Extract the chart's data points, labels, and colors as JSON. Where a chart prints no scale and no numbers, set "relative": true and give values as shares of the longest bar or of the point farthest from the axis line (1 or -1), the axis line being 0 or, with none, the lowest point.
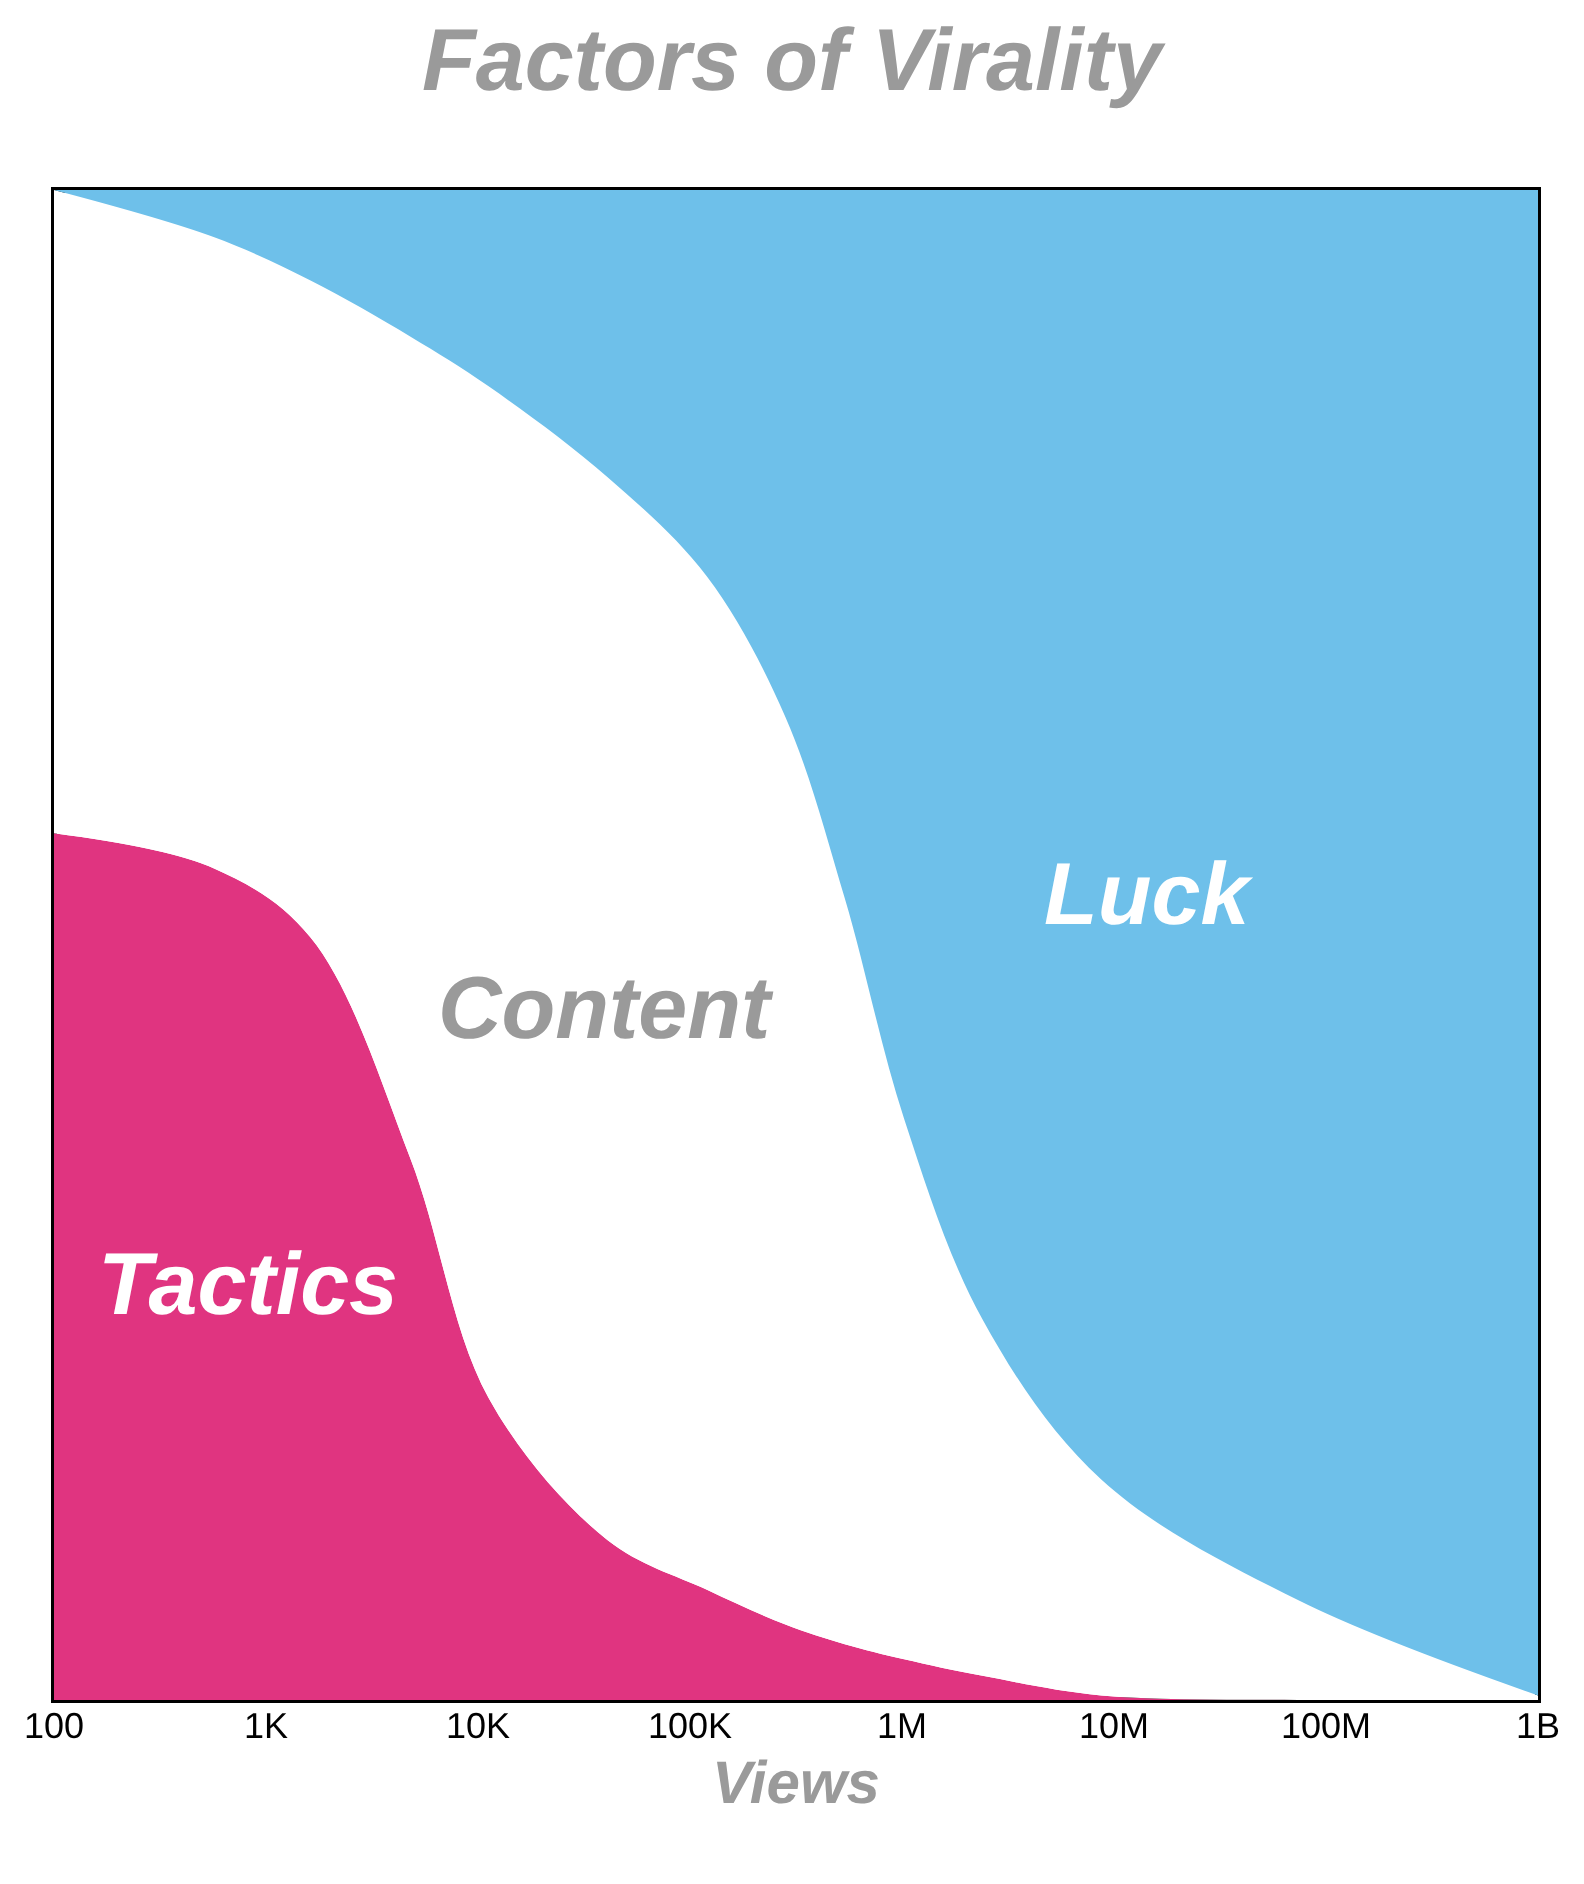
{
  "chart_data": {
    "type": "area",
    "title": "Factors of Virality",
    "xlabel": "Views",
    "stacked": true,
    "relative": true,
    "log": "x",
    "x": [
      100,
      562,
      1622,
      4786,
      11220,
      40740,
      120200,
      281800,
      537000,
      1023000,
      2399000,
      8710000,
      74130000,
      1000000000
    ],
    "xlim": [
      100,
      1000000000
    ],
    "xticks": [
      100,
      {
        "value": 1000,
        "label": "1K"
      },
      {
        "value": 10000,
        "label": "10K"
      },
      {
        "value": 100000,
        "label": "100K"
      },
      {
        "value": 1000000,
        "label": "1M"
      },
      {
        "value": 10000000,
        "label": "10M"
      },
      {
        "value": 100000000,
        "label": "100M"
      },
      {
        "value": 1000000000,
        "label": "1B"
      }
    ],
    "series": [
      {
        "name": "Tactics",
        "color": "#e03480",
        "values": [
          0.574,
          0.551,
          0.505,
          0.359,
          0.2,
          0.106,
          0.073,
          0.05,
          0.037,
          0.027,
          0.016,
          0.003,
          0,
          0
        ]
      },
      {
        "name": "Content",
        "color": "#ffffff",
        "values": [
          0.426,
          0.418,
          0.435,
          0.544,
          0.67,
          0.704,
          0.671,
          0.601,
          0.494,
          0.358,
          0.236,
          0.143,
          0.066,
          0.003
        ]
      },
      {
        "name": "Luck",
        "color": "#6ec0ea",
        "values": [
          0,
          0.031,
          0.06,
          0.097,
          0.13,
          0.19,
          0.256,
          0.349,
          0.469,
          0.615,
          0.748,
          0.854,
          0.934,
          0.997
        ]
      }
    ],
    "legend": false
  }
}
